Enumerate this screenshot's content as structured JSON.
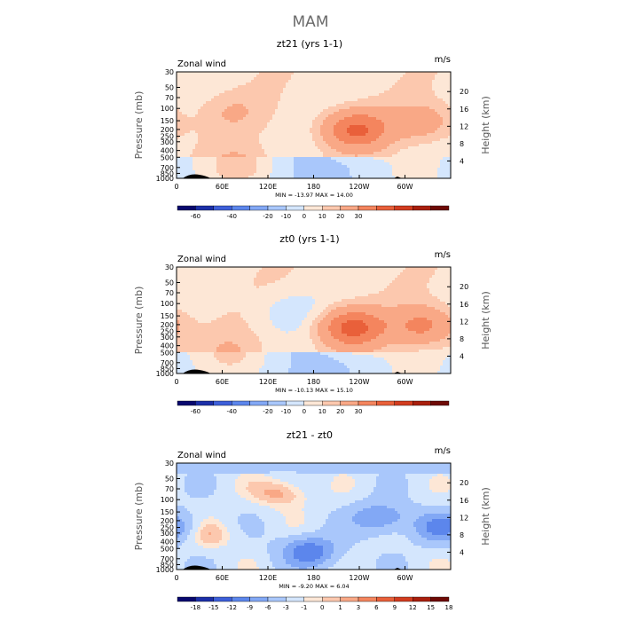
{
  "page_title": "MAM",
  "chart_data": [
    {
      "type": "heatmap",
      "title": "zt21 (yrs 1-1)",
      "variable": "Zonal wind",
      "units": "m/s",
      "ylabel": "Pressure (mb)",
      "ylabel_right": "Height (km)",
      "x_ticks": [
        "0",
        "60E",
        "120E",
        "180",
        "120W",
        "60W"
      ],
      "x_tick_values": [
        0,
        60,
        120,
        180,
        240,
        300
      ],
      "xlim": [
        0,
        360
      ],
      "y_ticks": [
        "30",
        "50",
        "70",
        "100",
        "150",
        "200",
        "250",
        "300",
        "400",
        "500",
        "700",
        "850",
        "1000"
      ],
      "y_tick_values": [
        30,
        50,
        70,
        100,
        150,
        200,
        250,
        300,
        400,
        500,
        700,
        850,
        1000
      ],
      "ylim": [
        1000,
        30
      ],
      "height_ticks": [
        "4",
        "8",
        "12",
        "16",
        "20"
      ],
      "height_tick_values": [
        4,
        8,
        12,
        16,
        20
      ],
      "stats": "MIN = -13.97   MAX =  14.00",
      "colorbar_labels": [
        "-60",
        "-40",
        "-20",
        "-10",
        "0",
        "10",
        "20",
        "30"
      ],
      "colorbar_colors": [
        "#08086e",
        "#1c2fa8",
        "#3d5fd9",
        "#5c86ec",
        "#82a8f5",
        "#a9c7fb",
        "#d4e6fd",
        "#fde7d6",
        "#fcc8ae",
        "#f9a886",
        "#f4855e",
        "#e9603a",
        "#d23c1f",
        "#a91f0d",
        "#6e0a05"
      ],
      "colorbar_label_positions": [
        1,
        3,
        5,
        6,
        7,
        8,
        9,
        10
      ],
      "features": [
        {
          "lon": 70,
          "p": 110,
          "value": 3
        },
        {
          "lon": 235,
          "p": 200,
          "value": 14
        },
        {
          "lon": 325,
          "p": 160,
          "value": 6
        },
        {
          "lon": 85,
          "p": 650,
          "value": 4
        }
      ]
    },
    {
      "type": "heatmap",
      "title": "zt0 (yrs 1-1)",
      "variable": "Zonal wind",
      "units": "m/s",
      "ylabel": "Pressure (mb)",
      "ylabel_right": "Height (km)",
      "x_ticks": [
        "0",
        "60E",
        "120E",
        "180",
        "120W",
        "60W"
      ],
      "x_tick_values": [
        0,
        60,
        120,
        180,
        240,
        300
      ],
      "xlim": [
        0,
        360
      ],
      "y_ticks": [
        "30",
        "50",
        "70",
        "100",
        "150",
        "200",
        "250",
        "300",
        "400",
        "500",
        "700",
        "850",
        "1000"
      ],
      "y_tick_values": [
        30,
        50,
        70,
        100,
        150,
        200,
        250,
        300,
        400,
        500,
        700,
        850,
        1000
      ],
      "ylim": [
        1000,
        30
      ],
      "height_ticks": [
        "4",
        "8",
        "12",
        "16",
        "20"
      ],
      "height_tick_values": [
        4,
        8,
        12,
        16,
        20
      ],
      "stats": "MIN = -10.13   MAX =  15.10",
      "colorbar_labels": [
        "-60",
        "-40",
        "-20",
        "-10",
        "0",
        "10",
        "20",
        "30"
      ],
      "colorbar_colors": [
        "#08086e",
        "#1c2fa8",
        "#3d5fd9",
        "#5c86ec",
        "#82a8f5",
        "#a9c7fb",
        "#d4e6fd",
        "#fde7d6",
        "#fcc8ae",
        "#f9a886",
        "#f4855e",
        "#e9603a",
        "#d23c1f",
        "#a91f0d",
        "#6e0a05"
      ],
      "colorbar_label_positions": [
        1,
        3,
        5,
        6,
        7,
        8,
        9,
        10
      ],
      "features": [
        {
          "lon": 230,
          "p": 220,
          "value": 15
        },
        {
          "lon": 325,
          "p": 210,
          "value": 10
        },
        {
          "lon": 145,
          "p": 130,
          "value": -3
        },
        {
          "lon": 75,
          "p": 500,
          "value": 3
        }
      ]
    },
    {
      "type": "heatmap",
      "title": "zt21 - zt0",
      "variable": "Zonal wind",
      "units": "m/s",
      "ylabel": "Pressure (mb)",
      "ylabel_right": "Height (km)",
      "x_ticks": [
        "0",
        "60E",
        "120E",
        "180",
        "120W",
        "60W"
      ],
      "x_tick_values": [
        0,
        60,
        120,
        180,
        240,
        300
      ],
      "xlim": [
        0,
        360
      ],
      "y_ticks": [
        "30",
        "50",
        "70",
        "100",
        "150",
        "200",
        "250",
        "300",
        "400",
        "500",
        "700",
        "850",
        "1000"
      ],
      "y_tick_values": [
        30,
        50,
        70,
        100,
        150,
        200,
        250,
        300,
        400,
        500,
        700,
        850,
        1000
      ],
      "ylim": [
        1000,
        30
      ],
      "height_ticks": [
        "4",
        "8",
        "12",
        "16",
        "20"
      ],
      "height_tick_values": [
        4,
        8,
        12,
        16,
        20
      ],
      "stats": "MIN = -9.20   MAX =  6.04",
      "colorbar_labels": [
        "-18",
        "-15",
        "-12",
        "-9",
        "-6",
        "-3",
        "-1",
        "0",
        "1",
        "3",
        "6",
        "9",
        "12",
        "15",
        "18"
      ],
      "colorbar_colors": [
        "#08086e",
        "#1c2fa8",
        "#3d5fd9",
        "#5c86ec",
        "#82a8f5",
        "#a9c7fb",
        "#d4e6fd",
        "#fde7d6",
        "#fcc8ae",
        "#f9a886",
        "#f4855e",
        "#e9603a",
        "#d23c1f",
        "#a91f0d",
        "#6e0a05"
      ],
      "colorbar_label_positions": [
        1,
        2,
        3,
        4,
        5,
        6,
        7,
        8,
        9,
        10,
        11,
        12,
        13,
        14,
        15
      ],
      "features": [
        {
          "lon": 175,
          "p": 550,
          "value": -9
        },
        {
          "lon": 350,
          "p": 250,
          "value": -8
        },
        {
          "lon": 268,
          "p": 180,
          "value": -7
        },
        {
          "lon": 140,
          "p": 80,
          "value": 4
        },
        {
          "lon": 40,
          "p": 320,
          "value": 3
        }
      ]
    }
  ]
}
